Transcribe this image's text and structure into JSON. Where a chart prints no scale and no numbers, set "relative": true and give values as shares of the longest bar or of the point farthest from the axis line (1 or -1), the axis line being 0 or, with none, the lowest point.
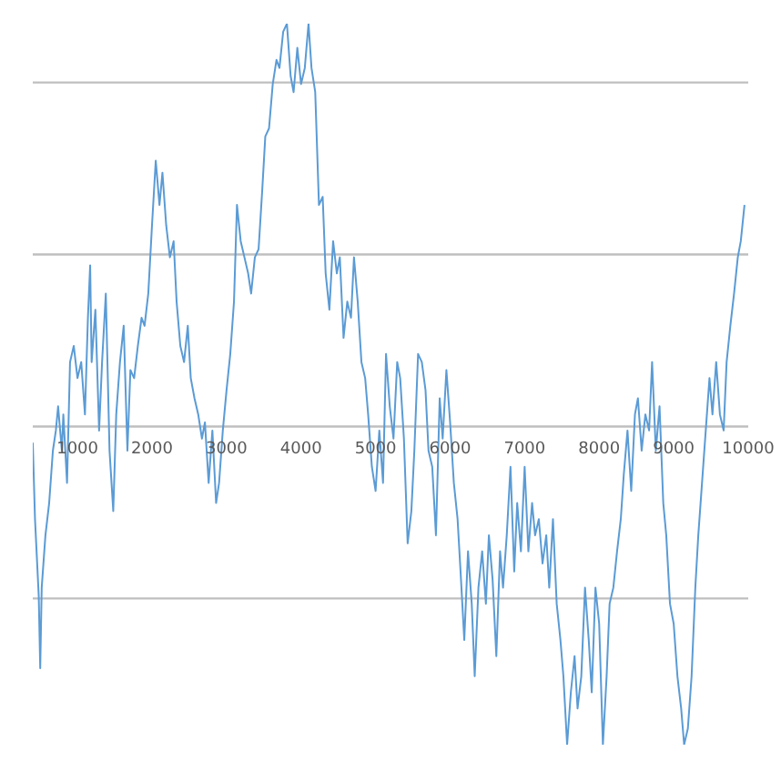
{
  "chart_data": {
    "type": "line",
    "relative": true,
    "grid": "y",
    "marker": "none",
    "line_style": "solid",
    "xlim": [
      400,
      10000
    ],
    "xticks": [
      1000,
      2000,
      3000,
      4000,
      5000,
      6000,
      7000,
      8000,
      9000,
      10000
    ],
    "x": [
      400,
      430,
      480,
      500,
      520,
      570,
      620,
      670,
      710,
      740,
      790,
      810,
      860,
      900,
      950,
      1000,
      1050,
      1100,
      1140,
      1170,
      1190,
      1240,
      1290,
      1330,
      1380,
      1430,
      1480,
      1520,
      1570,
      1620,
      1670,
      1710,
      1760,
      1810,
      1860,
      1900,
      1950,
      2000,
      2050,
      2100,
      2140,
      2190,
      2240,
      2290,
      2330,
      2380,
      2430,
      2480,
      2520,
      2570,
      2620,
      2670,
      2710,
      2760,
      2810,
      2860,
      2900,
      2950,
      3000,
      3050,
      3100,
      3140,
      3190,
      3240,
      3290,
      3330,
      3380,
      3430,
      3480,
      3520,
      3570,
      3620,
      3670,
      3710,
      3760,
      3810,
      3860,
      3900,
      3950,
      4000,
      4050,
      4100,
      4140,
      4190,
      4240,
      4290,
      4330,
      4380,
      4430,
      4480,
      4520,
      4570,
      4620,
      4670,
      4710,
      4760,
      4810,
      4860,
      4900,
      4950,
      5000,
      5050,
      5100,
      5140,
      5190,
      5240,
      5290,
      5330,
      5380,
      5430,
      5480,
      5520,
      5570,
      5620,
      5670,
      5710,
      5760,
      5810,
      5860,
      5900,
      5950,
      6000,
      6050,
      6100,
      6140,
      6190,
      6240,
      6290,
      6330,
      6380,
      6430,
      6480,
      6520,
      6570,
      6620,
      6670,
      6710,
      6760,
      6810,
      6860,
      6900,
      6950,
      7000,
      7050,
      7100,
      7140,
      7190,
      7240,
      7290,
      7330,
      7380,
      7430,
      7480,
      7520,
      7570,
      7620,
      7670,
      7710,
      7760,
      7810,
      7860,
      7900,
      7950,
      8000,
      8050,
      8100,
      8140,
      8190,
      8240,
      8290,
      8330,
      8380,
      8430,
      8480,
      8520,
      8570,
      8620,
      8670,
      8710,
      8760,
      8810,
      8860,
      8900,
      8950,
      9000,
      9050,
      9100,
      9140,
      9190,
      9240,
      9290,
      9330,
      9380,
      9430,
      9480,
      9520,
      9570,
      9620,
      9670,
      9710,
      9760,
      9810,
      9860,
      9900,
      9950
    ],
    "series": [
      {
        "color": "#5b9bd5",
        "values": [
          -0.04,
          -0.23,
          -0.42,
          -0.6,
          -0.4,
          -0.27,
          -0.19,
          -0.06,
          -0.01,
          0.05,
          -0.06,
          0.03,
          -0.14,
          0.16,
          0.2,
          0.12,
          0.16,
          0.03,
          0.27,
          0.4,
          0.16,
          0.29,
          -0.01,
          0.16,
          0.33,
          -0.06,
          -0.21,
          0.03,
          0.16,
          0.25,
          -0.06,
          0.14,
          0.12,
          0.2,
          0.27,
          0.25,
          0.33,
          0.5,
          0.66,
          0.55,
          0.63,
          0.5,
          0.42,
          0.46,
          0.31,
          0.2,
          0.16,
          0.25,
          0.12,
          0.07,
          0.03,
          -0.03,
          0.01,
          -0.14,
          -0.01,
          -0.19,
          -0.14,
          -0.01,
          0.09,
          0.18,
          0.31,
          0.55,
          0.46,
          0.42,
          0.38,
          0.33,
          0.42,
          0.44,
          0.59,
          0.72,
          0.74,
          0.85,
          0.91,
          0.89,
          0.98,
          1,
          0.87,
          0.83,
          0.94,
          0.85,
          0.89,
          1,
          0.89,
          0.83,
          0.55,
          0.57,
          0.38,
          0.29,
          0.46,
          0.38,
          0.42,
          0.22,
          0.31,
          0.27,
          0.42,
          0.31,
          0.16,
          0.12,
          0.03,
          -0.1,
          -0.16,
          -0.01,
          -0.14,
          0.18,
          0.05,
          -0.03,
          0.16,
          0.12,
          -0.03,
          -0.29,
          -0.21,
          -0.06,
          0.18,
          0.16,
          0.09,
          -0.06,
          -0.1,
          -0.27,
          0.07,
          -0.03,
          0.14,
          0.01,
          -0.14,
          -0.23,
          -0.36,
          -0.53,
          -0.31,
          -0.44,
          -0.62,
          -0.4,
          -0.31,
          -0.44,
          -0.27,
          -0.38,
          -0.57,
          -0.31,
          -0.4,
          -0.27,
          -0.1,
          -0.36,
          -0.19,
          -0.31,
          -0.1,
          -0.31,
          -0.19,
          -0.27,
          -0.23,
          -0.34,
          -0.27,
          -0.4,
          -0.23,
          -0.44,
          -0.53,
          -0.62,
          -0.79,
          -0.66,
          -0.57,
          -0.7,
          -0.62,
          -0.4,
          -0.53,
          -0.66,
          -0.4,
          -0.49,
          -0.79,
          -0.62,
          -0.44,
          -0.4,
          -0.31,
          -0.23,
          -0.12,
          -0.01,
          -0.16,
          0.03,
          0.07,
          -0.06,
          0.03,
          -0.01,
          0.16,
          -0.06,
          0.05,
          -0.19,
          -0.27,
          -0.44,
          -0.49,
          -0.62,
          -0.7,
          -0.79,
          -0.75,
          -0.62,
          -0.4,
          -0.27,
          -0.14,
          -0.01,
          0.12,
          0.03,
          0.16,
          0.03,
          -0.01,
          0.16,
          0.25,
          0.33,
          0.42,
          0.46,
          0.55
        ]
      }
    ]
  }
}
